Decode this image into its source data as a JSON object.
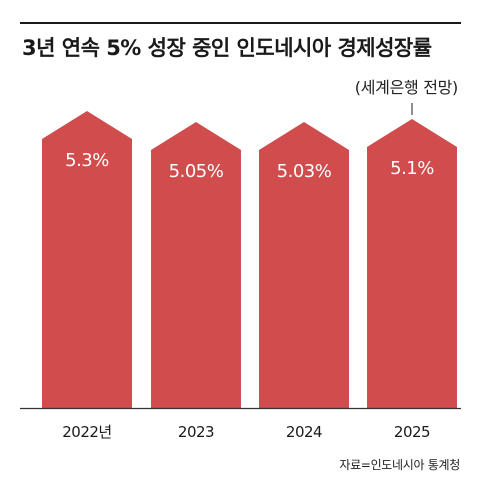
{
  "header": {
    "title": "3년 연속 5% 성장 중인 인도네시아 경제성장률",
    "forecast_note": "(세계은행 전망)"
  },
  "source": "자료=인도네시아 통계청",
  "colors": {
    "bar": "#d14c4c",
    "value_text": "#ffffff",
    "axis": "#333333"
  },
  "chart_data": {
    "type": "bar",
    "title": "3년 연속 5% 성장 중인 인도네시아 경제성장률",
    "categories": [
      "2022년",
      "2023",
      "2024",
      "2025"
    ],
    "values": [
      5.3,
      5.05,
      5.03,
      5.1
    ],
    "value_labels": [
      "5.3%",
      "5.05%",
      "5.03%",
      "5.1%"
    ],
    "forecast_index": 3,
    "unit": "%",
    "xlabel": "",
    "ylabel": "",
    "grid": false,
    "bar_shape": "arrow"
  }
}
